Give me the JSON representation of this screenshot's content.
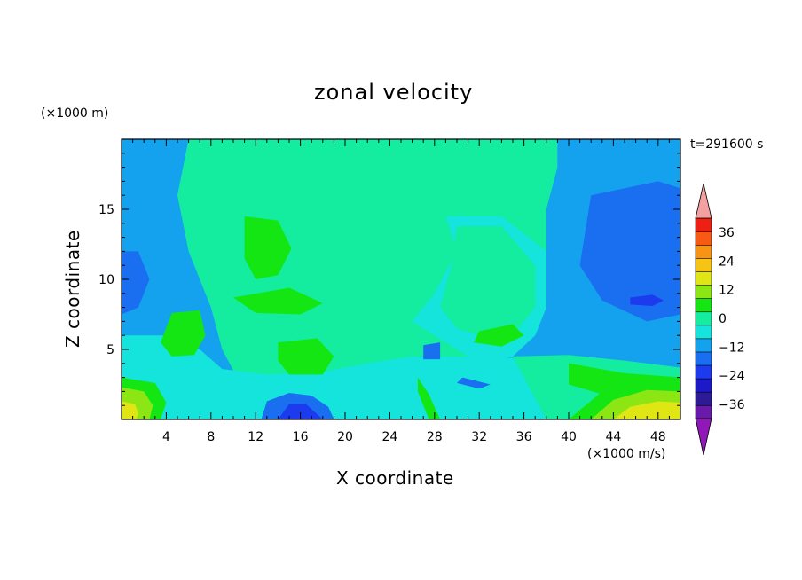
{
  "chart_data": {
    "type": "heatmap",
    "title": "zonal velocity",
    "xlabel": "X coordinate",
    "ylabel": "Z coordinate",
    "x_unit": "(×1000 m/s)",
    "y_unit": "(×1000 m)",
    "time_label": "t=291600 s",
    "xlim": [
      0,
      50
    ],
    "ylim": [
      0,
      20
    ],
    "x_ticks": [
      4,
      8,
      12,
      16,
      20,
      24,
      28,
      32,
      36,
      40,
      44,
      48
    ],
    "y_ticks": [
      5,
      10,
      15
    ],
    "colorbar": {
      "ticks": [
        -36,
        -24,
        -12,
        0,
        12,
        24,
        36
      ],
      "levels": [
        -42,
        -36,
        -30,
        -24,
        -18,
        -12,
        -6,
        0,
        6,
        12,
        18,
        24,
        30,
        36,
        42
      ],
      "colors": [
        "#6a1aa8",
        "#2c1a96",
        "#1c1ac8",
        "#1c3aee",
        "#1a6ef0",
        "#14a2ee",
        "#14e4dc",
        "#14eca0",
        "#14e614",
        "#8ce614",
        "#e0e614",
        "#f8c414",
        "#f89414",
        "#f85a14",
        "#ee2014"
      ],
      "under_color": "#9018b8",
      "over_color": "#f2a0a0"
    },
    "regions": [
      {
        "value": -8,
        "polygon": [
          [
            0,
            0
          ],
          [
            50,
            0
          ],
          [
            50,
            20
          ],
          [
            0,
            20
          ]
        ]
      },
      {
        "value": 2,
        "polygon": [
          [
            6,
            20
          ],
          [
            39,
            20
          ],
          [
            39,
            18
          ],
          [
            38,
            15
          ],
          [
            38,
            8
          ],
          [
            37,
            6
          ],
          [
            33,
            3.5
          ],
          [
            29,
            2
          ],
          [
            25,
            1.2
          ],
          [
            20,
            1.5
          ],
          [
            16,
            2.2
          ],
          [
            12,
            2.8
          ],
          [
            10,
            3.5
          ],
          [
            9,
            5
          ],
          [
            8,
            8
          ],
          [
            6,
            12
          ],
          [
            5,
            16
          ]
        ]
      },
      {
        "value": -3,
        "polygon": [
          [
            29,
            14.5
          ],
          [
            34,
            14.5
          ],
          [
            38,
            12
          ],
          [
            38,
            8
          ],
          [
            37,
            6
          ],
          [
            35,
            4.5
          ],
          [
            32,
            4
          ],
          [
            30,
            5
          ],
          [
            28,
            6
          ],
          [
            26,
            7
          ],
          [
            28,
            9
          ],
          [
            30,
            12
          ]
        ]
      },
      {
        "value": 2,
        "polygon": [
          [
            30,
            13.8
          ],
          [
            34,
            13.8
          ],
          [
            37,
            11
          ],
          [
            37,
            8
          ],
          [
            35,
            6
          ],
          [
            32,
            6
          ],
          [
            30,
            6.5
          ],
          [
            28.5,
            8
          ],
          [
            29.5,
            11
          ]
        ]
      },
      {
        "value": -3,
        "polygon": [
          [
            0,
            6
          ],
          [
            4,
            6
          ],
          [
            7,
            5
          ],
          [
            9,
            3.6
          ],
          [
            13,
            3.2
          ],
          [
            18,
            3.4
          ],
          [
            22,
            4
          ],
          [
            26,
            4.5
          ],
          [
            30,
            4.5
          ],
          [
            35,
            4.4
          ],
          [
            40,
            4
          ],
          [
            45,
            3.6
          ],
          [
            50,
            3.4
          ],
          [
            50,
            0
          ],
          [
            0,
            0
          ]
        ]
      },
      {
        "value": 2,
        "polygon": [
          [
            35,
            4.5
          ],
          [
            40,
            4.6
          ],
          [
            45,
            4.2
          ],
          [
            50,
            3.7
          ],
          [
            50,
            0
          ],
          [
            38,
            0
          ],
          [
            37,
            1.5
          ],
          [
            36,
            3
          ]
        ]
      },
      {
        "value": 8,
        "polygon": [
          [
            40,
            4
          ],
          [
            45,
            3.3
          ],
          [
            50,
            3
          ],
          [
            50,
            1.6
          ],
          [
            47,
            2
          ],
          [
            43,
            1.8
          ],
          [
            40,
            2.5
          ]
        ]
      },
      {
        "value": -9,
        "polygon": [
          [
            39,
            19.5
          ],
          [
            50,
            19.5
          ],
          [
            50,
            7
          ],
          [
            48,
            5.5
          ],
          [
            44,
            5
          ],
          [
            40,
            6
          ],
          [
            39,
            10
          ]
        ]
      },
      {
        "value": -14,
        "polygon": [
          [
            42,
            16
          ],
          [
            48,
            17
          ],
          [
            50,
            16.5
          ],
          [
            50,
            7.5
          ],
          [
            47,
            7
          ],
          [
            43,
            8.5
          ],
          [
            41,
            11
          ]
        ]
      },
      {
        "value": -20,
        "polygon": [
          [
            45.5,
            8.7
          ],
          [
            47.5,
            8.9
          ],
          [
            48.5,
            8.5
          ],
          [
            47.5,
            8.1
          ],
          [
            45.5,
            8.2
          ]
        ]
      },
      {
        "value": -14,
        "polygon": [
          [
            0,
            12
          ],
          [
            1.5,
            12
          ],
          [
            2.5,
            10
          ],
          [
            1.5,
            8
          ],
          [
            0,
            7.5
          ]
        ]
      },
      {
        "value": 8,
        "polygon": [
          [
            11,
            14.5
          ],
          [
            14,
            14.2
          ],
          [
            15.2,
            12.2
          ],
          [
            14,
            10.3
          ],
          [
            12,
            10
          ],
          [
            11,
            11.5
          ]
        ]
      },
      {
        "value": 8,
        "polygon": [
          [
            4.5,
            7.6
          ],
          [
            7,
            7.8
          ],
          [
            7.5,
            6
          ],
          [
            6.5,
            4.6
          ],
          [
            4.5,
            4.5
          ],
          [
            3.5,
            5.5
          ]
        ]
      },
      {
        "value": 8,
        "polygon": [
          [
            14,
            5.5
          ],
          [
            17.5,
            5.8
          ],
          [
            19,
            4.5
          ],
          [
            18,
            3.2
          ],
          [
            15,
            3.2
          ],
          [
            14,
            4.2
          ]
        ]
      },
      {
        "value": 8,
        "polygon": [
          [
            10,
            8.7
          ],
          [
            15,
            9.4
          ],
          [
            18,
            8.3
          ],
          [
            16,
            7.5
          ],
          [
            12,
            7.6
          ]
        ]
      },
      {
        "value": 8,
        "polygon": [
          [
            32,
            6.3
          ],
          [
            35,
            6.8
          ],
          [
            36,
            6
          ],
          [
            34,
            5.2
          ],
          [
            31.5,
            5.5
          ]
        ]
      },
      {
        "value": 8,
        "polygon": [
          [
            26.5,
            3
          ],
          [
            27.5,
            1.8
          ],
          [
            28.5,
            0
          ],
          [
            27.5,
            0
          ],
          [
            26.5,
            2
          ]
        ]
      },
      {
        "value": 8,
        "polygon": [
          [
            0,
            3
          ],
          [
            3,
            2.6
          ],
          [
            4,
            1.2
          ],
          [
            3.5,
            0
          ],
          [
            0,
            0
          ]
        ]
      },
      {
        "value": 15,
        "polygon": [
          [
            0,
            2.3
          ],
          [
            2,
            2
          ],
          [
            2.8,
            1
          ],
          [
            2.5,
            0
          ],
          [
            0,
            0
          ]
        ]
      },
      {
        "value": 22,
        "polygon": [
          [
            0,
            1.3
          ],
          [
            1.2,
            1.1
          ],
          [
            1.5,
            0.4
          ],
          [
            1.3,
            0
          ],
          [
            0,
            0
          ]
        ]
      },
      {
        "value": 8,
        "polygon": [
          [
            40,
            0
          ],
          [
            43,
            2
          ],
          [
            47,
            2.8
          ],
          [
            50,
            2.6
          ],
          [
            50,
            0
          ]
        ]
      },
      {
        "value": 15,
        "polygon": [
          [
            42,
            0
          ],
          [
            44,
            1.4
          ],
          [
            47,
            2.1
          ],
          [
            50,
            2
          ],
          [
            50,
            0
          ]
        ]
      },
      {
        "value": 22,
        "polygon": [
          [
            44,
            0
          ],
          [
            45.5,
            0.9
          ],
          [
            48,
            1.3
          ],
          [
            50,
            1.2
          ],
          [
            50,
            0
          ]
        ]
      },
      {
        "value": -14,
        "polygon": [
          [
            12.5,
            0
          ],
          [
            13,
            1.3
          ],
          [
            15,
            1.9
          ],
          [
            17,
            1.7
          ],
          [
            18.5,
            0.9
          ],
          [
            19,
            0
          ]
        ]
      },
      {
        "value": -20,
        "polygon": [
          [
            14,
            0
          ],
          [
            15,
            1.1
          ],
          [
            16.5,
            1.1
          ],
          [
            18,
            0
          ]
        ]
      },
      {
        "value": -14,
        "polygon": [
          [
            27,
            5.3
          ],
          [
            28.5,
            5.5
          ],
          [
            28.5,
            4.3
          ],
          [
            27,
            4.3
          ]
        ]
      },
      {
        "value": -14,
        "polygon": [
          [
            30.5,
            3
          ],
          [
            33,
            2.5
          ],
          [
            32,
            2.2
          ],
          [
            30,
            2.6
          ]
        ]
      }
    ]
  }
}
